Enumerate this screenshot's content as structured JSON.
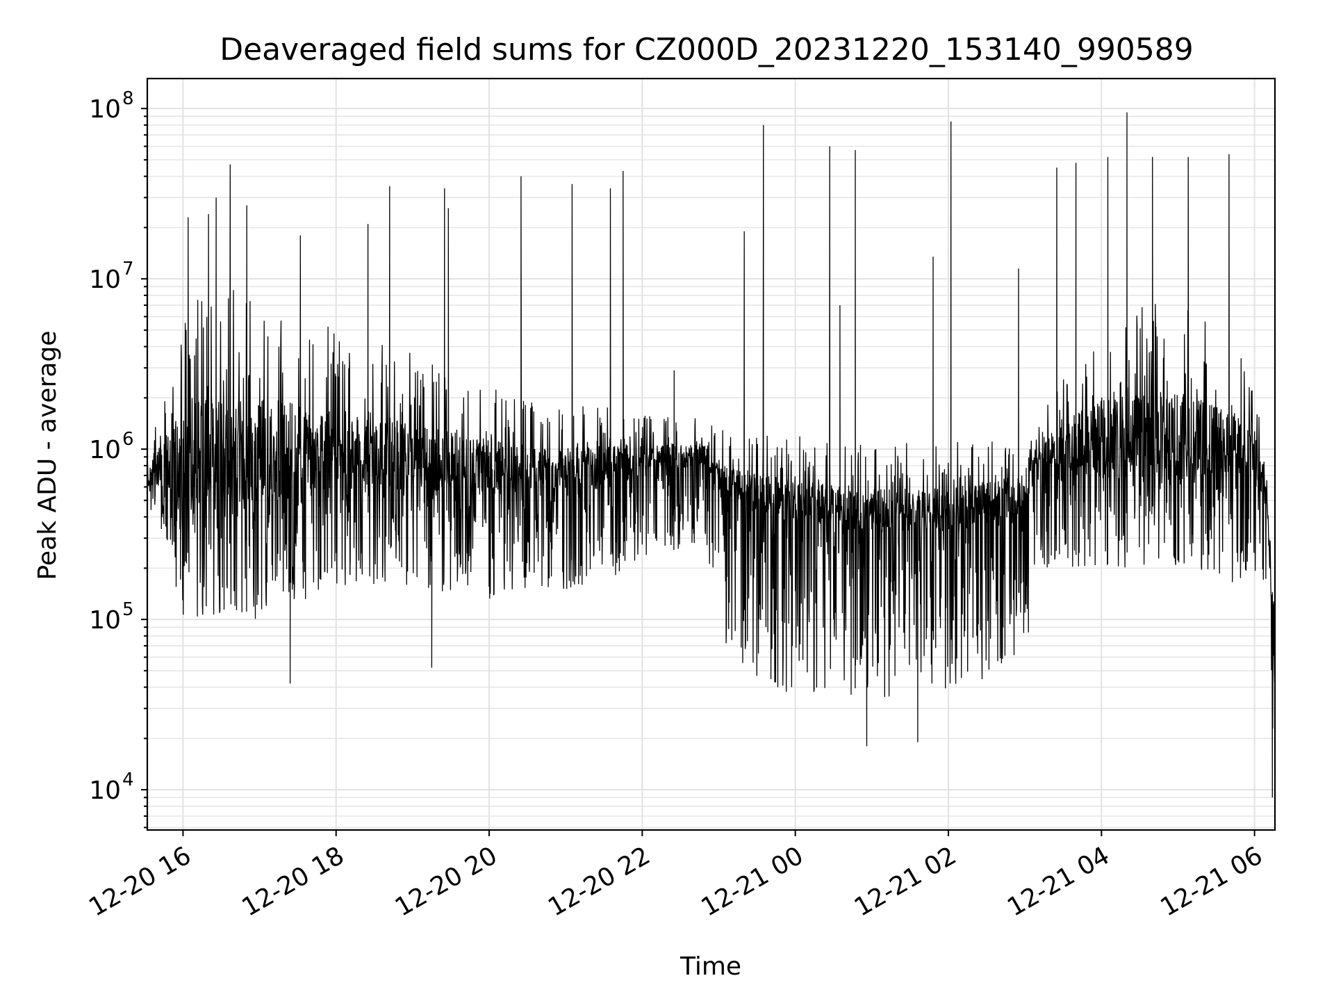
{
  "chart_data": {
    "type": "line",
    "title": "Deaveraged field sums for CZ000D_20231220_153140_990589",
    "xlabel": "Time",
    "ylabel": "Peak ADU - average",
    "yscale": "log",
    "xlim": [
      "2023-12-20T15:32",
      "2023-12-21T06:16"
    ],
    "ylim": [
      5800,
      150000000
    ],
    "grid": true,
    "x_ticks": [
      {
        "t": "2023-12-20T16:00",
        "label": "12-20 16"
      },
      {
        "t": "2023-12-20T18:00",
        "label": "12-20 18"
      },
      {
        "t": "2023-12-20T20:00",
        "label": "12-20 20"
      },
      {
        "t": "2023-12-20T22:00",
        "label": "12-20 22"
      },
      {
        "t": "2023-12-21T00:00",
        "label": "12-21 00"
      },
      {
        "t": "2023-12-21T02:00",
        "label": "12-21 02"
      },
      {
        "t": "2023-12-21T04:00",
        "label": "12-21 04"
      },
      {
        "t": "2023-12-21T06:00",
        "label": "12-21 06"
      }
    ],
    "y_ticks": [
      {
        "value": 10000,
        "base": "10",
        "exp": "4"
      },
      {
        "value": 100000,
        "base": "10",
        "exp": "5"
      },
      {
        "value": 1000000,
        "base": "10",
        "exp": "6"
      },
      {
        "value": 10000000,
        "base": "10",
        "exp": "7"
      },
      {
        "value": 100000000,
        "base": "10",
        "exp": "8"
      }
    ],
    "series": [
      {
        "color": "#000000",
        "envelope": [
          {
            "t": "2023-12-20T15:32",
            "median": 700000,
            "low": 400000,
            "high": 1000000
          },
          {
            "t": "2023-12-20T15:45",
            "median": 800000,
            "low": 300000,
            "high": 2000000
          },
          {
            "t": "2023-12-20T16:00",
            "median": 800000,
            "low": 100000,
            "high": 10000000
          },
          {
            "t": "2023-12-20T17:00",
            "median": 800000,
            "low": 100000,
            "high": 8000000
          },
          {
            "t": "2023-12-20T18:00",
            "median": 900000,
            "low": 150000,
            "high": 5000000
          },
          {
            "t": "2023-12-20T19:00",
            "median": 800000,
            "low": 150000,
            "high": 4000000
          },
          {
            "t": "2023-12-20T20:00",
            "median": 700000,
            "low": 130000,
            "high": 2500000
          },
          {
            "t": "2023-12-20T21:00",
            "median": 700000,
            "low": 150000,
            "high": 2000000
          },
          {
            "t": "2023-12-20T22:00",
            "median": 800000,
            "low": 200000,
            "high": 1600000
          },
          {
            "t": "2023-12-20T22:50",
            "median": 900000,
            "low": 300000,
            "high": 1600000
          },
          {
            "t": "2023-12-20T23:00",
            "median": 600000,
            "low": 60000,
            "high": 1300000
          },
          {
            "t": "2023-12-21T00:00",
            "median": 450000,
            "low": 35000,
            "high": 1200000
          },
          {
            "t": "2023-12-21T01:00",
            "median": 400000,
            "low": 35000,
            "high": 1100000
          },
          {
            "t": "2023-12-21T02:00",
            "median": 400000,
            "low": 35000,
            "high": 1100000
          },
          {
            "t": "2023-12-21T03:00",
            "median": 500000,
            "low": 60000,
            "high": 1200000
          },
          {
            "t": "2023-12-21T03:10",
            "median": 900000,
            "low": 200000,
            "high": 1600000
          },
          {
            "t": "2023-12-21T04:00",
            "median": 1000000,
            "low": 200000,
            "high": 6000000
          },
          {
            "t": "2023-12-21T05:00",
            "median": 1000000,
            "low": 200000,
            "high": 8000000
          },
          {
            "t": "2023-12-21T06:00",
            "median": 900000,
            "low": 150000,
            "high": 3000000
          },
          {
            "t": "2023-12-21T06:10",
            "median": 500000,
            "low": 100000,
            "high": 1000000
          },
          {
            "t": "2023-12-21T06:16",
            "median": 50000,
            "low": 9000,
            "high": 250000
          }
        ],
        "spikes": [
          {
            "t": "2023-12-20T16:37",
            "value": 47000000
          },
          {
            "t": "2023-12-20T16:26",
            "value": 30000000
          },
          {
            "t": "2023-12-20T16:04",
            "value": 23000000
          },
          {
            "t": "2023-12-20T16:20",
            "value": 24000000
          },
          {
            "t": "2023-12-20T16:50",
            "value": 27000000
          },
          {
            "t": "2023-12-20T17:32",
            "value": 18000000
          },
          {
            "t": "2023-12-20T17:24",
            "value": 42000
          },
          {
            "t": "2023-12-20T18:25",
            "value": 21000000
          },
          {
            "t": "2023-12-20T18:42",
            "value": 35000000
          },
          {
            "t": "2023-12-20T19:15",
            "value": 52000
          },
          {
            "t": "2023-12-20T19:25",
            "value": 34000000
          },
          {
            "t": "2023-12-20T19:28",
            "value": 26000000
          },
          {
            "t": "2023-12-20T20:25",
            "value": 40000000
          },
          {
            "t": "2023-12-20T21:05",
            "value": 36000000
          },
          {
            "t": "2023-12-20T21:35",
            "value": 34000000
          },
          {
            "t": "2023-12-20T21:45",
            "value": 43000000
          },
          {
            "t": "2023-12-20T22:25",
            "value": 2900000
          },
          {
            "t": "2023-12-20T23:20",
            "value": 19000000
          },
          {
            "t": "2023-12-20T23:35",
            "value": 80000000
          },
          {
            "t": "2023-12-21T00:27",
            "value": 60000000
          },
          {
            "t": "2023-12-21T00:47",
            "value": 57000000
          },
          {
            "t": "2023-12-21T00:35",
            "value": 7000000
          },
          {
            "t": "2023-12-21T00:56",
            "value": 18000
          },
          {
            "t": "2023-12-21T01:36",
            "value": 19000
          },
          {
            "t": "2023-12-21T01:48",
            "value": 13500000
          },
          {
            "t": "2023-12-21T02:02",
            "value": 84000000
          },
          {
            "t": "2023-12-21T02:55",
            "value": 11500000
          },
          {
            "t": "2023-12-21T03:25",
            "value": 45000000
          },
          {
            "t": "2023-12-21T03:40",
            "value": 48000000
          },
          {
            "t": "2023-12-21T04:20",
            "value": 95000000
          },
          {
            "t": "2023-12-21T04:05",
            "value": 52000000
          },
          {
            "t": "2023-12-21T04:40",
            "value": 52000000
          },
          {
            "t": "2023-12-21T05:08",
            "value": 52000000
          },
          {
            "t": "2023-12-21T05:40",
            "value": 54000000
          },
          {
            "t": "2023-12-21T06:14",
            "value": 9000
          }
        ]
      }
    ]
  }
}
